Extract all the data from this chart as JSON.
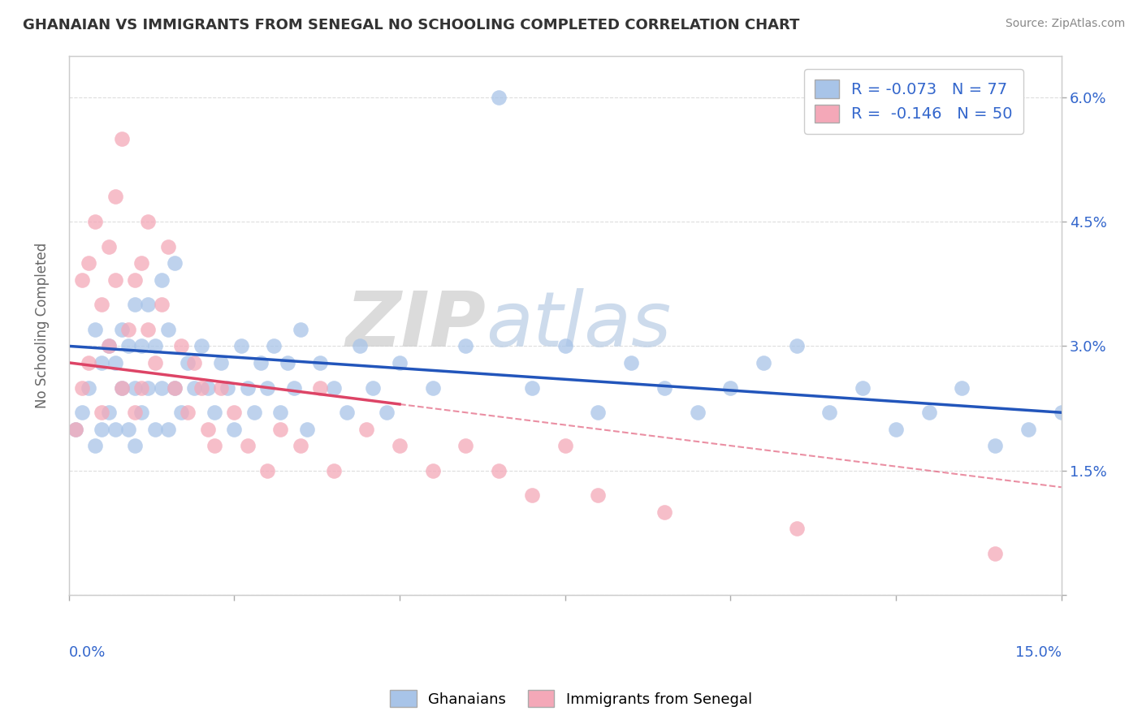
{
  "title": "GHANAIAN VS IMMIGRANTS FROM SENEGAL NO SCHOOLING COMPLETED CORRELATION CHART",
  "source": "Source: ZipAtlas.com",
  "ylabel": "No Schooling Completed",
  "yticks": [
    0.0,
    0.015,
    0.03,
    0.045,
    0.06
  ],
  "ytick_labels": [
    "",
    "1.5%",
    "3.0%",
    "4.5%",
    "6.0%"
  ],
  "xmin": 0.0,
  "xmax": 0.15,
  "ymin": 0.0,
  "ymax": 0.065,
  "blue_R": -0.073,
  "blue_N": 77,
  "pink_R": -0.146,
  "pink_N": 50,
  "blue_color": "#a8c4e8",
  "pink_color": "#f4a8b8",
  "blue_line_color": "#2255bb",
  "pink_line_color": "#dd4466",
  "legend_label_blue": "Ghanaians",
  "legend_label_pink": "Immigrants from Senegal",
  "watermark_zip": "ZIP",
  "watermark_atlas": "atlas",
  "background_color": "#ffffff",
  "grid_color": "#dddddd",
  "title_color": "#333333",
  "blue_scatter_x": [
    0.001,
    0.002,
    0.003,
    0.004,
    0.004,
    0.005,
    0.005,
    0.006,
    0.006,
    0.007,
    0.007,
    0.008,
    0.008,
    0.009,
    0.009,
    0.01,
    0.01,
    0.01,
    0.011,
    0.011,
    0.012,
    0.012,
    0.013,
    0.013,
    0.014,
    0.014,
    0.015,
    0.015,
    0.016,
    0.016,
    0.017,
    0.018,
    0.019,
    0.02,
    0.021,
    0.022,
    0.023,
    0.024,
    0.025,
    0.026,
    0.027,
    0.028,
    0.029,
    0.03,
    0.031,
    0.032,
    0.033,
    0.034,
    0.035,
    0.036,
    0.038,
    0.04,
    0.042,
    0.044,
    0.046,
    0.048,
    0.05,
    0.055,
    0.06,
    0.065,
    0.07,
    0.075,
    0.08,
    0.085,
    0.09,
    0.095,
    0.1,
    0.105,
    0.11,
    0.115,
    0.12,
    0.125,
    0.13,
    0.135,
    0.14,
    0.145,
    0.15
  ],
  "blue_scatter_y": [
    0.02,
    0.022,
    0.025,
    0.018,
    0.032,
    0.02,
    0.028,
    0.022,
    0.03,
    0.02,
    0.028,
    0.025,
    0.032,
    0.02,
    0.03,
    0.018,
    0.025,
    0.035,
    0.022,
    0.03,
    0.025,
    0.035,
    0.02,
    0.03,
    0.025,
    0.038,
    0.02,
    0.032,
    0.025,
    0.04,
    0.022,
    0.028,
    0.025,
    0.03,
    0.025,
    0.022,
    0.028,
    0.025,
    0.02,
    0.03,
    0.025,
    0.022,
    0.028,
    0.025,
    0.03,
    0.022,
    0.028,
    0.025,
    0.032,
    0.02,
    0.028,
    0.025,
    0.022,
    0.03,
    0.025,
    0.022,
    0.028,
    0.025,
    0.03,
    0.06,
    0.025,
    0.03,
    0.022,
    0.028,
    0.025,
    0.022,
    0.025,
    0.028,
    0.03,
    0.022,
    0.025,
    0.02,
    0.022,
    0.025,
    0.018,
    0.02,
    0.022
  ],
  "pink_scatter_x": [
    0.001,
    0.002,
    0.002,
    0.003,
    0.003,
    0.004,
    0.005,
    0.005,
    0.006,
    0.006,
    0.007,
    0.007,
    0.008,
    0.008,
    0.009,
    0.01,
    0.01,
    0.011,
    0.011,
    0.012,
    0.012,
    0.013,
    0.014,
    0.015,
    0.016,
    0.017,
    0.018,
    0.019,
    0.02,
    0.021,
    0.022,
    0.023,
    0.025,
    0.027,
    0.03,
    0.032,
    0.035,
    0.038,
    0.04,
    0.045,
    0.05,
    0.055,
    0.06,
    0.065,
    0.07,
    0.075,
    0.08,
    0.09,
    0.11,
    0.14
  ],
  "pink_scatter_y": [
    0.02,
    0.038,
    0.025,
    0.04,
    0.028,
    0.045,
    0.035,
    0.022,
    0.042,
    0.03,
    0.038,
    0.048,
    0.025,
    0.055,
    0.032,
    0.022,
    0.038,
    0.04,
    0.025,
    0.032,
    0.045,
    0.028,
    0.035,
    0.042,
    0.025,
    0.03,
    0.022,
    0.028,
    0.025,
    0.02,
    0.018,
    0.025,
    0.022,
    0.018,
    0.015,
    0.02,
    0.018,
    0.025,
    0.015,
    0.02,
    0.018,
    0.015,
    0.018,
    0.015,
    0.012,
    0.018,
    0.012,
    0.01,
    0.008,
    0.005
  ],
  "pink_line_solid_end": 0.05,
  "blue_line_y_start": 0.03,
  "blue_line_y_end": 0.022,
  "pink_line_y_start": 0.028,
  "pink_line_y_end": 0.013
}
